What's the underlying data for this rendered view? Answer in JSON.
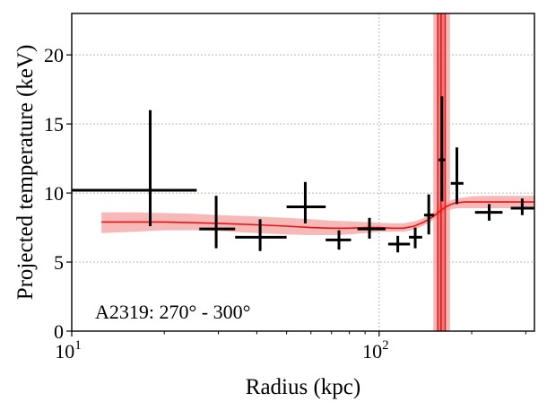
{
  "chart_data": {
    "type": "scatter",
    "title": "",
    "xlabel": "Radius (kpc)",
    "ylabel": "Projected temperature (keV)",
    "xscale": "log",
    "xlim": [
      10,
      320
    ],
    "ylim": [
      0,
      23
    ],
    "grid": true,
    "x_tick_labels": [
      {
        "value": 10,
        "base": "10",
        "exp": "1"
      },
      {
        "value": 100,
        "base": "10",
        "exp": "2"
      }
    ],
    "y_ticks": [
      0,
      5,
      10,
      15,
      20
    ],
    "annotation": "A2319: 270° - 300°",
    "colors": {
      "points": "#000000",
      "model": "#ee1111",
      "band": "#f4a0a0"
    },
    "series": [
      {
        "type": "errorbar",
        "points": [
          {
            "x": 18,
            "xerr": [
              8,
              25.5
            ],
            "y": 10.2,
            "yerr": [
              7.6,
              16.0
            ]
          },
          {
            "x": 29.5,
            "xerr": [
              26,
              34
            ],
            "y": 7.4,
            "yerr": [
              6.0,
              9.8
            ]
          },
          {
            "x": 41,
            "xerr": [
              34,
              50
            ],
            "y": 6.8,
            "yerr": [
              5.8,
              8.1
            ]
          },
          {
            "x": 57.5,
            "xerr": [
              50,
              67
            ],
            "y": 9.0,
            "yerr": [
              7.8,
              10.8
            ]
          },
          {
            "x": 74,
            "xerr": [
              67,
              81
            ],
            "y": 6.6,
            "yerr": [
              5.9,
              7.3
            ]
          },
          {
            "x": 93,
            "xerr": [
              85,
              105
            ],
            "y": 7.4,
            "yerr": [
              6.7,
              8.2
            ]
          },
          {
            "x": 115,
            "xerr": [
              107,
              126
            ],
            "y": 6.3,
            "yerr": [
              5.7,
              6.9
            ]
          },
          {
            "x": 131,
            "xerr": [
              125,
              138
            ],
            "y": 6.8,
            "yerr": [
              6.0,
              7.5
            ]
          },
          {
            "x": 145,
            "xerr": [
              140,
              151
            ],
            "y": 8.4,
            "yerr": [
              7.0,
              9.9
            ]
          },
          {
            "x": 160,
            "xerr": [
              156,
              164
            ],
            "y": 12.4,
            "yerr": [
              9.4,
              17.0
            ]
          },
          {
            "x": 179,
            "xerr": [
              171,
              188
            ],
            "y": 10.7,
            "yerr": [
              9.2,
              13.3
            ]
          },
          {
            "x": 228,
            "xerr": [
              205,
              252
            ],
            "y": 8.6,
            "yerr": [
              8.0,
              9.2
            ]
          },
          {
            "x": 292,
            "xerr": [
              268,
              320
            ],
            "y": 8.9,
            "yerr": [
              8.4,
              9.6
            ]
          }
        ]
      },
      {
        "type": "model-line",
        "x": [
          12.5,
          16,
          20,
          25,
          30,
          40,
          50,
          60,
          70,
          80,
          90,
          100,
          110,
          120,
          130,
          140,
          150,
          155,
          160,
          165,
          170,
          175,
          180,
          190,
          200,
          220,
          250,
          280,
          320
        ],
        "y": [
          7.9,
          7.9,
          7.9,
          7.85,
          7.8,
          7.7,
          7.6,
          7.5,
          7.45,
          7.45,
          7.5,
          7.5,
          7.45,
          7.45,
          7.6,
          7.9,
          8.3,
          8.55,
          8.8,
          9.0,
          9.15,
          9.25,
          9.3,
          9.35,
          9.35,
          9.35,
          9.35,
          9.35,
          9.35
        ],
        "lower": [
          7.1,
          7.2,
          7.3,
          7.3,
          7.25,
          7.1,
          7.0,
          6.95,
          6.95,
          7.0,
          7.1,
          7.2,
          7.2,
          7.2,
          7.35,
          7.65,
          8.05,
          8.3,
          8.55,
          8.7,
          8.8,
          8.85,
          8.9,
          8.9,
          8.9,
          8.9,
          8.9,
          8.9,
          8.9
        ],
        "upper": [
          8.6,
          8.6,
          8.55,
          8.5,
          8.4,
          8.3,
          8.2,
          8.1,
          8.0,
          7.95,
          7.9,
          7.85,
          7.8,
          7.8,
          7.95,
          8.2,
          8.6,
          8.85,
          9.1,
          9.3,
          9.45,
          9.55,
          9.6,
          9.7,
          9.75,
          9.8,
          9.8,
          9.8,
          9.8
        ]
      },
      {
        "type": "vertical-boundary",
        "x": 159,
        "lower": 150,
        "upper": 170,
        "inner_lower": 155,
        "inner_upper": 164
      }
    ]
  }
}
